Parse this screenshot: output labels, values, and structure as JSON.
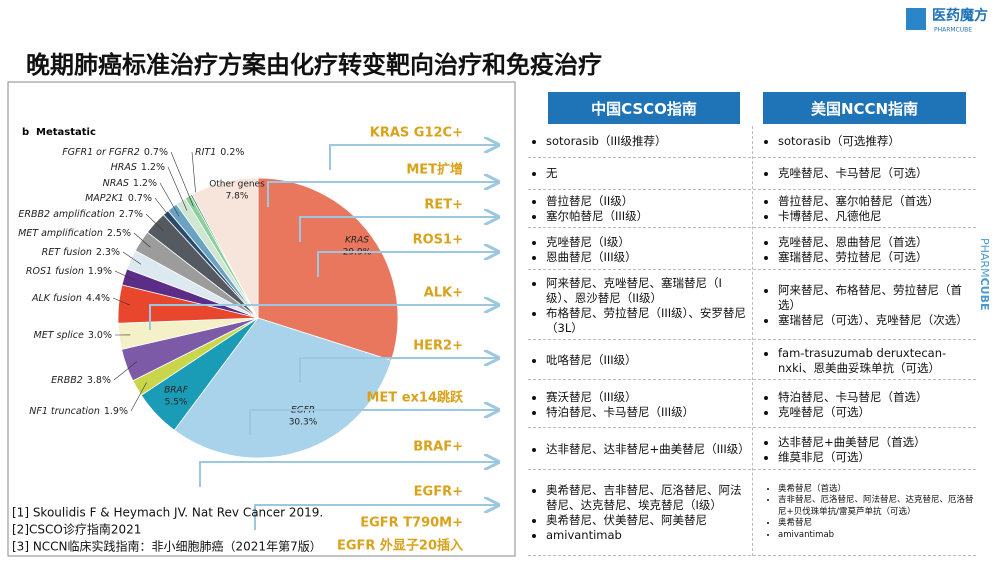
{
  "header": {
    "title": "晚期肺癌标准治疗方案由化疗转变靶向治疗和免疫治疗",
    "logo": "医药魔方",
    "logo_sub": "PHARMCUBE",
    "side_brand_a": "PHARM",
    "side_brand_b": "CUBE"
  },
  "chart_data": {
    "type": "pie",
    "panel_label": "b",
    "title": "Metastatic",
    "categories": [
      "KRAS",
      "EGFR",
      "BRAF",
      "NF1 truncation",
      "ERBB2",
      "MET splice",
      "ALK fusion",
      "ROS1 fusion",
      "RET fusion",
      "MET amplification",
      "ERBB2 amplification",
      "MAP2K1",
      "NRAS",
      "HRAS",
      "FGFR1 or FGFR2",
      "RIT1",
      "Other genes"
    ],
    "values": [
      29.9,
      30.3,
      5.5,
      1.9,
      3.8,
      3.0,
      4.4,
      1.9,
      2.3,
      2.5,
      2.7,
      0.7,
      1.2,
      1.2,
      0.7,
      0.2,
      7.8
    ],
    "value_labels": [
      "29.9%",
      "30.3%",
      "5.5%",
      "1.9%",
      "3.8%",
      "3.0%",
      "4.4%",
      "1.9%",
      "2.3%",
      "2.5%",
      "2.7%",
      "0.7%",
      "1.2%",
      "1.2%",
      "0.7%",
      "0.2%",
      "7.8%"
    ],
    "colors": [
      "#e9775e",
      "#a9d3ea",
      "#1b9cb6",
      "#c9d64c",
      "#7c5aa8",
      "#f4f0c8",
      "#e8462d",
      "#5b2d86",
      "#dde9f0",
      "#9c9c9c",
      "#555a60",
      "#2b4b6e",
      "#6aa2c2",
      "#cfe7d1",
      "#8ccf9a",
      "#1b7d5d",
      "#f7e4da"
    ]
  },
  "targets": [
    "KRAS G12C+",
    "MET扩增",
    "RET+",
    "ROS1+",
    "ALK+",
    "HER2+",
    "MET ex14跳跃",
    "BRAF+",
    "EGFR+",
    "EGFR T790M+",
    "EGFR 外显子20插入"
  ],
  "table": {
    "headers": [
      "中国CSCO指南",
      "美国NCCN指南"
    ],
    "rows": [
      {
        "csco": [
          "sotorasib（III级推荐）"
        ],
        "nccn": [
          "sotorasib（可选推荐）"
        ]
      },
      {
        "csco": [
          "无"
        ],
        "nccn": [
          "克唑替尼、卡马替尼（可选）"
        ]
      },
      {
        "csco": [
          "普拉替尼（II级）",
          "塞尔帕替尼（III级）"
        ],
        "nccn": [
          "普拉替尼、塞尔帕替尼（首选）",
          "卡博替尼、凡德他尼"
        ]
      },
      {
        "csco": [
          "克唑替尼（I级）",
          "恩曲替尼（III级）"
        ],
        "nccn": [
          "克唑替尼、恩曲替尼（首选）",
          "塞瑞替尼、劳拉替尼（可选）"
        ]
      },
      {
        "csco": [
          "阿来替尼、克唑替尼、塞瑞替尼（I级）、恩沙替尼（II级）",
          "布格替尼、劳拉替尼（III级）、安罗替尼（3L）"
        ],
        "nccn": [
          "阿来替尼、布格替尼、劳拉替尼（首选）",
          "塞瑞替尼（可选）、克唑替尼（次选）"
        ]
      },
      {
        "csco": [
          "吡咯替尼（III级）"
        ],
        "nccn": [
          "fam-trasuzumab deruxtecan-nxki、恩美曲妥珠单抗（可选）"
        ]
      },
      {
        "csco": [
          "赛沃替尼（III级）",
          "特泊替尼、卡马替尼（III级）"
        ],
        "nccn": [
          "特泊替尼、卡马替尼（首选）",
          "克唑替尼（可选）"
        ]
      },
      {
        "csco": [
          "达非替尼、达非替尼+曲美替尼（III级）"
        ],
        "nccn": [
          "达非替尼+曲美替尼（首选）",
          "维莫非尼（可选）"
        ]
      },
      {
        "csco": [
          "奥希替尼、吉非替尼、厄洛替尼、阿法替尼、达克替尼、埃克替尼（I级）",
          "奥希替尼、伏美替尼、阿美替尼",
          "amivantimab"
        ],
        "nccn": [
          "奥希替尼（首选）",
          "吉非替尼、厄洛替尼、阿法替尼、达克替尼、厄洛替尼+贝伐珠单抗/雷莫芦单抗（可选）",
          "奥希替尼",
          "amivantimab"
        ]
      }
    ]
  },
  "references": [
    "[1] Skoulidis F & Heymach JV. Nat Rev Cancer 2019.",
    "[2]CSCO诊疗指南2021",
    "[3] NCCN临床实践指南：非小细胞肺癌（2021年第7版）"
  ]
}
